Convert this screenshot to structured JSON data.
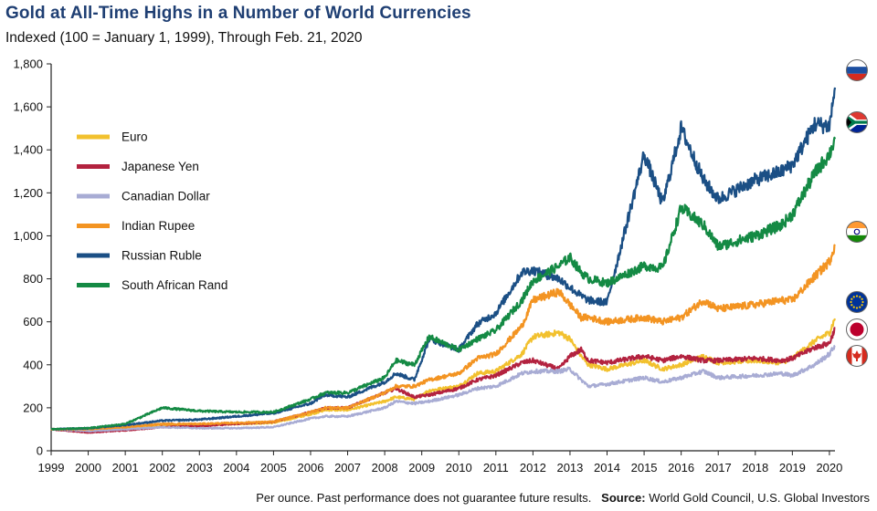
{
  "chart_data": {
    "type": "line",
    "title": "Gold at All-Time Highs in a Number of World Currencies",
    "subtitle": "Indexed (100 = January 1, 1999), Through Feb. 21, 2020",
    "xlabel": "",
    "ylabel": "",
    "ylim": [
      0,
      1800
    ],
    "xlim": [
      1999,
      2020.15
    ],
    "y_ticks": [
      0,
      200,
      400,
      600,
      800,
      1000,
      1200,
      1400,
      1600,
      1800
    ],
    "y_tick_labels": [
      "0",
      "200",
      "400",
      "600",
      "800",
      "1,000",
      "1,200",
      "1,400",
      "1,600",
      "1,800"
    ],
    "x_ticks": [
      1999,
      2000,
      2001,
      2002,
      2003,
      2004,
      2005,
      2006,
      2007,
      2008,
      2009,
      2010,
      2011,
      2012,
      2013,
      2014,
      2015,
      2016,
      2017,
      2018,
      2019,
      2020
    ],
    "x_tick_labels": [
      "1999",
      "2000",
      "2001",
      "2002",
      "2003",
      "2004",
      "2005",
      "2006",
      "2007",
      "2008",
      "2009",
      "2010",
      "2011",
      "2012",
      "2013",
      "2014",
      "2015",
      "2016",
      "2017",
      "2018",
      "2019",
      "2020"
    ],
    "legend_position": "top-left",
    "grid": false,
    "series": [
      {
        "name": "Euro",
        "color": "#f2c12e",
        "flag": "eu-flag-icon",
        "x": [
          1999,
          2000,
          2001,
          2002,
          2003,
          2004,
          2005,
          2006,
          2006.4,
          2007,
          2008,
          2008.3,
          2008.8,
          2009.2,
          2010,
          2010.5,
          2011,
          2011.7,
          2012,
          2012.7,
          2013,
          2013.3,
          2013.5,
          2014,
          2015,
          2015.5,
          2016,
          2016.6,
          2017,
          2018,
          2018.7,
          2019,
          2019.6,
          2020,
          2020.15
        ],
        "values": [
          100,
          97,
          105,
          115,
          120,
          125,
          130,
          170,
          190,
          190,
          230,
          250,
          240,
          280,
          300,
          360,
          370,
          450,
          530,
          550,
          520,
          440,
          400,
          380,
          420,
          380,
          400,
          440,
          410,
          420,
          410,
          430,
          510,
          550,
          615
        ]
      },
      {
        "name": "Japanese Yen",
        "color": "#b3223f",
        "flag": "japan-flag-icon",
        "x": [
          1999,
          2000,
          2001,
          2002,
          2003,
          2004,
          2005,
          2006,
          2006.4,
          2007,
          2008,
          2008.3,
          2008.8,
          2009.2,
          2010,
          2010.5,
          2011,
          2011.7,
          2012,
          2012.7,
          2013,
          2013.3,
          2013.5,
          2014,
          2015,
          2015.5,
          2016,
          2016.6,
          2017,
          2018,
          2018.7,
          2019,
          2019.6,
          2020,
          2020.15
        ],
        "values": [
          100,
          85,
          95,
          110,
          115,
          125,
          135,
          180,
          200,
          200,
          270,
          290,
          250,
          260,
          290,
          330,
          350,
          410,
          420,
          380,
          440,
          470,
          420,
          410,
          440,
          420,
          440,
          420,
          420,
          430,
          420,
          430,
          480,
          500,
          570
        ]
      },
      {
        "name": "Canadian Dollar",
        "color": "#a8acd4",
        "flag": "canada-flag-icon",
        "x": [
          1999,
          2000,
          2001,
          2002,
          2003,
          2004,
          2005,
          2006,
          2006.4,
          2007,
          2008,
          2008.3,
          2008.8,
          2009.2,
          2010,
          2010.5,
          2011,
          2011.7,
          2012,
          2012.7,
          2013,
          2013.3,
          2013.5,
          2014,
          2015,
          2015.5,
          2016,
          2016.6,
          2017,
          2018,
          2018.7,
          2019,
          2019.6,
          2020,
          2020.15
        ],
        "values": [
          100,
          92,
          100,
          110,
          105,
          105,
          110,
          150,
          160,
          160,
          200,
          230,
          220,
          230,
          260,
          290,
          300,
          360,
          370,
          370,
          380,
          330,
          300,
          310,
          340,
          320,
          340,
          370,
          340,
          350,
          360,
          350,
          400,
          450,
          490
        ]
      },
      {
        "name": "Indian Rupee",
        "color": "#f39422",
        "flag": "india-flag-icon",
        "x": [
          1999,
          2000,
          2001,
          2002,
          2003,
          2004,
          2005,
          2006,
          2006.4,
          2007,
          2008,
          2008.3,
          2008.8,
          2009.2,
          2010,
          2010.5,
          2011,
          2011.7,
          2012,
          2012.7,
          2013,
          2013.3,
          2013.5,
          2014,
          2015,
          2015.5,
          2016,
          2016.6,
          2017,
          2018,
          2018.7,
          2019,
          2019.6,
          2020,
          2020.15
        ],
        "values": [
          100,
          100,
          110,
          125,
          125,
          130,
          135,
          180,
          200,
          200,
          270,
          300,
          300,
          330,
          360,
          430,
          450,
          580,
          700,
          740,
          680,
          620,
          620,
          600,
          620,
          600,
          620,
          700,
          660,
          680,
          700,
          700,
          810,
          880,
          960
        ]
      },
      {
        "name": "Russian Ruble",
        "color": "#1b4f85",
        "flag": "russia-flag-icon",
        "x": [
          1999,
          2000,
          2001,
          2002,
          2003,
          2004,
          2005,
          2006,
          2006.4,
          2007,
          2008,
          2008.3,
          2008.8,
          2009.2,
          2010,
          2010.5,
          2011,
          2011.7,
          2012,
          2012.7,
          2013,
          2013.3,
          2013.5,
          2014,
          2015,
          2015.5,
          2016,
          2016.6,
          2017,
          2018,
          2018.7,
          2019,
          2019.6,
          2020,
          2020.15
        ],
        "values": [
          100,
          105,
          120,
          140,
          145,
          160,
          175,
          220,
          260,
          250,
          320,
          360,
          330,
          520,
          470,
          590,
          640,
          830,
          840,
          800,
          760,
          720,
          700,
          690,
          1380,
          1150,
          1500,
          1260,
          1170,
          1260,
          1300,
          1330,
          1520,
          1510,
          1690
        ]
      },
      {
        "name": "South African Rand",
        "color": "#148a44",
        "flag": "south-africa-flag-icon",
        "x": [
          1999,
          2000,
          2001,
          2002,
          2003,
          2004,
          2005,
          2006,
          2006.4,
          2007,
          2008,
          2008.3,
          2008.8,
          2009.2,
          2010,
          2010.5,
          2011,
          2011.7,
          2012,
          2012.7,
          2013,
          2013.3,
          2013.5,
          2014,
          2015,
          2015.5,
          2016,
          2016.6,
          2017,
          2018,
          2018.7,
          2019,
          2019.6,
          2020,
          2020.15
        ],
        "values": [
          100,
          105,
          125,
          200,
          185,
          180,
          180,
          240,
          270,
          270,
          340,
          420,
          400,
          530,
          470,
          520,
          560,
          700,
          790,
          860,
          900,
          830,
          800,
          780,
          860,
          850,
          1130,
          1050,
          950,
          1000,
          1050,
          1100,
          1290,
          1380,
          1450
        ]
      }
    ]
  },
  "footer": {
    "note": "Per ounce. Past performance does not guarantee future results.",
    "source_label": "Source:",
    "source_text": "World Gold Council, U.S. Global Investors"
  }
}
